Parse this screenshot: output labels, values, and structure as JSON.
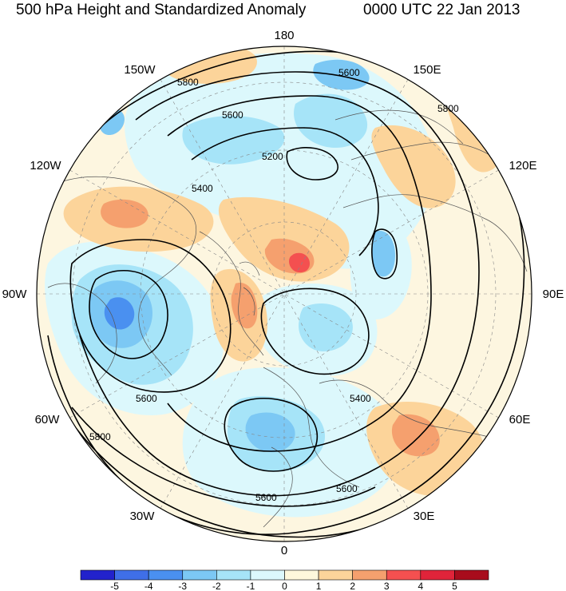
{
  "title": {
    "left": "500 hPa Height and Standardized Anomaly",
    "right": "0000 UTC 22 Jan 2013"
  },
  "colors": {
    "ocean_land_bg": "#fdf6e0",
    "coastline": "#555555",
    "contour": "#000000",
    "grid": "#888888"
  },
  "longitude_labels": [
    {
      "id": "180",
      "text": "180"
    },
    {
      "id": "150E",
      "text": "150E"
    },
    {
      "id": "120E",
      "text": "120E"
    },
    {
      "id": "90E",
      "text": "90E"
    },
    {
      "id": "60E",
      "text": "60E"
    },
    {
      "id": "30E",
      "text": "30E"
    },
    {
      "id": "0",
      "text": "0"
    },
    {
      "id": "30W",
      "text": "30W"
    },
    {
      "id": "60W",
      "text": "60W"
    },
    {
      "id": "90W",
      "text": "90W"
    },
    {
      "id": "120W",
      "text": "120W"
    },
    {
      "id": "150W",
      "text": "150W"
    }
  ],
  "contour_labels": [
    "5800",
    "5600",
    "5400",
    "5200",
    "5600",
    "5800",
    "5600",
    "5800",
    "5400",
    "5600",
    "5600"
  ],
  "colorbar": {
    "bins": [
      {
        "color": "#2222cc"
      },
      {
        "color": "#3f6fe8"
      },
      {
        "color": "#4a90f0"
      },
      {
        "color": "#7cc8f4"
      },
      {
        "color": "#a6e4f8"
      },
      {
        "color": "#dcf8fc"
      },
      {
        "color": "#fef8dc"
      },
      {
        "color": "#fcd49a"
      },
      {
        "color": "#f5a06e"
      },
      {
        "color": "#f45050"
      },
      {
        "color": "#e0243a"
      },
      {
        "color": "#a80c1c"
      }
    ],
    "ticks": [
      "-5",
      "-4",
      "-3",
      "-2",
      "-1",
      "0",
      "1",
      "2",
      "3",
      "4",
      "5"
    ]
  }
}
